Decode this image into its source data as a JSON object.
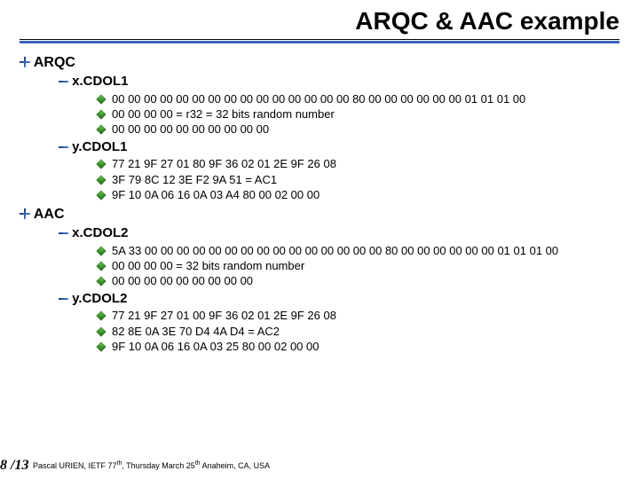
{
  "title": "ARQC & AAC example",
  "sections": [
    {
      "label": "ARQC",
      "subs": [
        {
          "label": "x.CDOL1",
          "items": [
            "00 00 00 00 00 00 00 00 00 00 00 00 00 00 00 80 00 00 00 00 00 00 01 01 01 00",
            "00 00 00 00  = r32 = 32 bits random number",
            "00 00 00 00 00 00 00 00 00 00"
          ]
        },
        {
          "label": "y.CDOL1",
          "items": [
            "77 21 9F 27 01 80 9F 36 02 01 2E 9F 26 08",
            "3F 79 8C 12 3E F2 9A 51  = AC1",
            "9F 10 0A 06 16 0A 03 A4 80 00 02 00 00"
          ]
        }
      ]
    },
    {
      "label": "AAC",
      "subs": [
        {
          "label": "x.CDOL2",
          "items": [
            "5A 33 00 00 00 00 00 00 00 00 00 00 00 00 00 00 00 80 00 00 00 00 00 00 01 01 01 00",
            "00 00 00 00 = 32 bits random number",
            "00 00 00 00 00 00 00 00 00"
          ]
        },
        {
          "label": "y.CDOL2",
          "items": [
            "77 21 9F 27 01 00 9F 36 02 01 2E 9F 26 08",
            "82 8E 0A 3E 70 D4 4A D4 = AC2",
            "9F 10 0A 06 16 0A 03 25 80 00 02 00 00"
          ]
        }
      ]
    }
  ],
  "footer": {
    "page": "8 /13",
    "text_pre": "Pascal URIEN, IETF 77",
    "sup1": "th",
    "text_mid": ", Thursday March  25",
    "sup2": "th",
    "text_post": " Anaheim, CA, USA"
  },
  "colors": {
    "rule": "#3a66b5",
    "text": "#000000",
    "background": "#ffffff"
  }
}
